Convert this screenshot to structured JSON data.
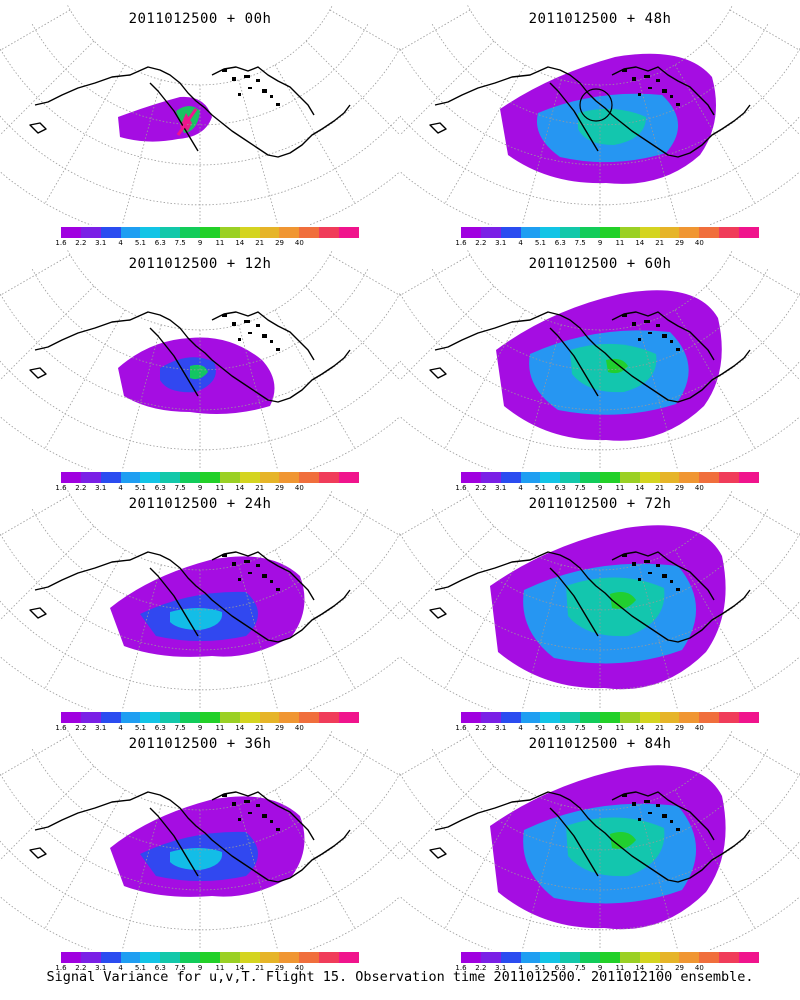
{
  "colorbar": {
    "labels": [
      "1.6",
      "2.2",
      "3.1",
      "4",
      "5.1",
      "6.3",
      "7.5",
      "9",
      "11",
      "14",
      "21",
      "29",
      "40"
    ],
    "colors": [
      "#a000e0",
      "#7a1fe6",
      "#2a4cf0",
      "#1f9ef2",
      "#12c4e6",
      "#12c8aa",
      "#12cc5a",
      "#22d028",
      "#9ad024",
      "#d4d420",
      "#e6b428",
      "#f09632",
      "#f06e3c",
      "#f03c5a",
      "#f0148c"
    ]
  },
  "panels": [
    {
      "title": "2011012500 + 00h",
      "level": 0
    },
    {
      "title": "2011012500 + 48h",
      "level": 3
    },
    {
      "title": "2011012500 + 12h",
      "level": 1
    },
    {
      "title": "2011012500 + 60h",
      "level": 4
    },
    {
      "title": "2011012500 + 24h",
      "level": 2
    },
    {
      "title": "2011012500 + 72h",
      "level": 5
    },
    {
      "title": "2011012500 + 36h",
      "level": 2
    },
    {
      "title": "2011012500 + 84h",
      "level": 5
    }
  ],
  "footer": "Signal Variance for u,v,T. Flight 15. Observation time 2011012500. 2011012100 ensemble."
}
